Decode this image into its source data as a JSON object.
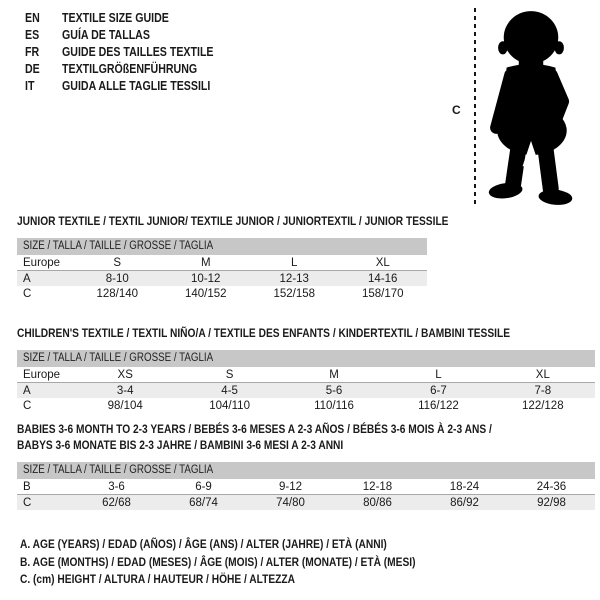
{
  "page": {
    "background": "#ffffff",
    "text_color": "#1a1a1a"
  },
  "colors": {
    "table_header_bg": "#c7c7c7",
    "row_stripe_bg": "#ececec",
    "separator_line": "#a8a8a8",
    "silhouette": "#000000"
  },
  "language_list": [
    {
      "code": "EN",
      "label": "TEXTILE SIZE GUIDE"
    },
    {
      "code": "ES",
      "label": "GUÍA DE TALLAS"
    },
    {
      "code": "FR",
      "label": "GUIDE DES TAILLES TEXTILE"
    },
    {
      "code": "DE",
      "label": "TEXTILGRÖßENFÜHRUNG"
    },
    {
      "code": "IT",
      "label": "GUIDA ALLE TAGLIE TESSILI"
    }
  ],
  "figure": {
    "height_label": "C"
  },
  "tables": [
    {
      "id": "junior",
      "title_lines": [
        "JUNIOR TEXTILE / TEXTIL JUNIOR/ TEXTILE JUNIOR / JUNIORTEXTIL / JUNIOR TESSILE"
      ],
      "size_header": "SIZE / TALLA / TAILLE / GRÖSSE / TAGLIA",
      "rows": [
        {
          "label": "Europe",
          "values": [
            "S",
            "M",
            "L",
            "XL"
          ]
        },
        {
          "label": "A",
          "values": [
            "8-10",
            "10-12",
            "12-13",
            "14-16"
          ]
        },
        {
          "label": "C",
          "values": [
            "128/140",
            "140/152",
            "152/158",
            "158/170"
          ]
        }
      ]
    },
    {
      "id": "children",
      "title_lines": [
        "CHILDREN'S TEXTILE / TEXTIL NIÑO/A / TEXTILE DES ENFANTS / KINDERTEXTIL / BAMBINI TESSILE"
      ],
      "size_header": "SIZE / TALLA / TAILLE / GRÖSSE / TAGLIA",
      "rows": [
        {
          "label": "Europe",
          "values": [
            "XS",
            "S",
            "M",
            "L",
            "XL"
          ]
        },
        {
          "label": "A",
          "values": [
            "3-4",
            "4-5",
            "5-6",
            "6-7",
            "7-8"
          ]
        },
        {
          "label": "C",
          "values": [
            "98/104",
            "104/110",
            "110/116",
            "116/122",
            "122/128"
          ]
        }
      ]
    },
    {
      "id": "babies",
      "title_lines": [
        "BABIES 3-6 MONTH TO 2-3 YEARS / BEBÉS 3-6 MESES A 2-3 AÑOS / BÉBÉS 3-6 MOIS À 2-3 ANS /",
        "BABYS 3-6 MONATE BIS 2-3 JAHRE / BAMBINI 3-6 MESI A 2-3 ANNI"
      ],
      "size_header": "SIZE / TALLA / TAILLE / GRÖSSE / TAGLIA",
      "rows": [
        {
          "label": "B",
          "values": [
            "3-6",
            "6-9",
            "9-12",
            "12-18",
            "18-24",
            "24-36"
          ]
        },
        {
          "label": "C",
          "values": [
            "62/68",
            "68/74",
            "74/80",
            "80/86",
            "86/92",
            "92/98"
          ]
        }
      ]
    }
  ],
  "footnotes": [
    "A. AGE (YEARS) / EDAD (AÑOS) / ÂGE (ANS) / ALTER (JAHRE) / ETÀ (ANNI)",
    "B. AGE (MONTHS) / EDAD (MESES) / ÂGE (MOIS) / ALTER (MONATE) / ETÀ (MESI)",
    "C. (cm) HEIGHT / ALTURA / HAUTEUR / HÖHE / ALTEZZA"
  ]
}
